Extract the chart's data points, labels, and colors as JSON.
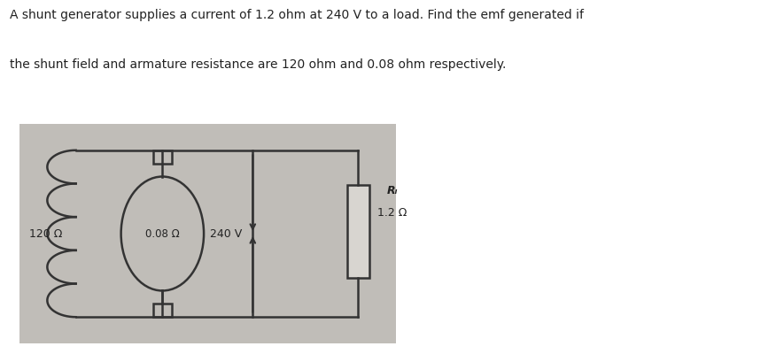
{
  "title_line1": "A shunt generator supplies a current of 1.2 ohm at 240 V to a load. Find the emf generated if",
  "title_line2": "the shunt field and armature resistance are 120 ohm and 0.08 ohm respectively.",
  "circuit_bg": "#c0bdb8",
  "fig_bg": "#ffffff",
  "label_shunt": "120 Ω",
  "label_armature": "0.08 Ω",
  "label_voltage": "240 V",
  "label_RL_top": "Rₗ",
  "label_RL_bot": "1.2 Ω",
  "wire_color": "#333333",
  "text_color": "#222222"
}
